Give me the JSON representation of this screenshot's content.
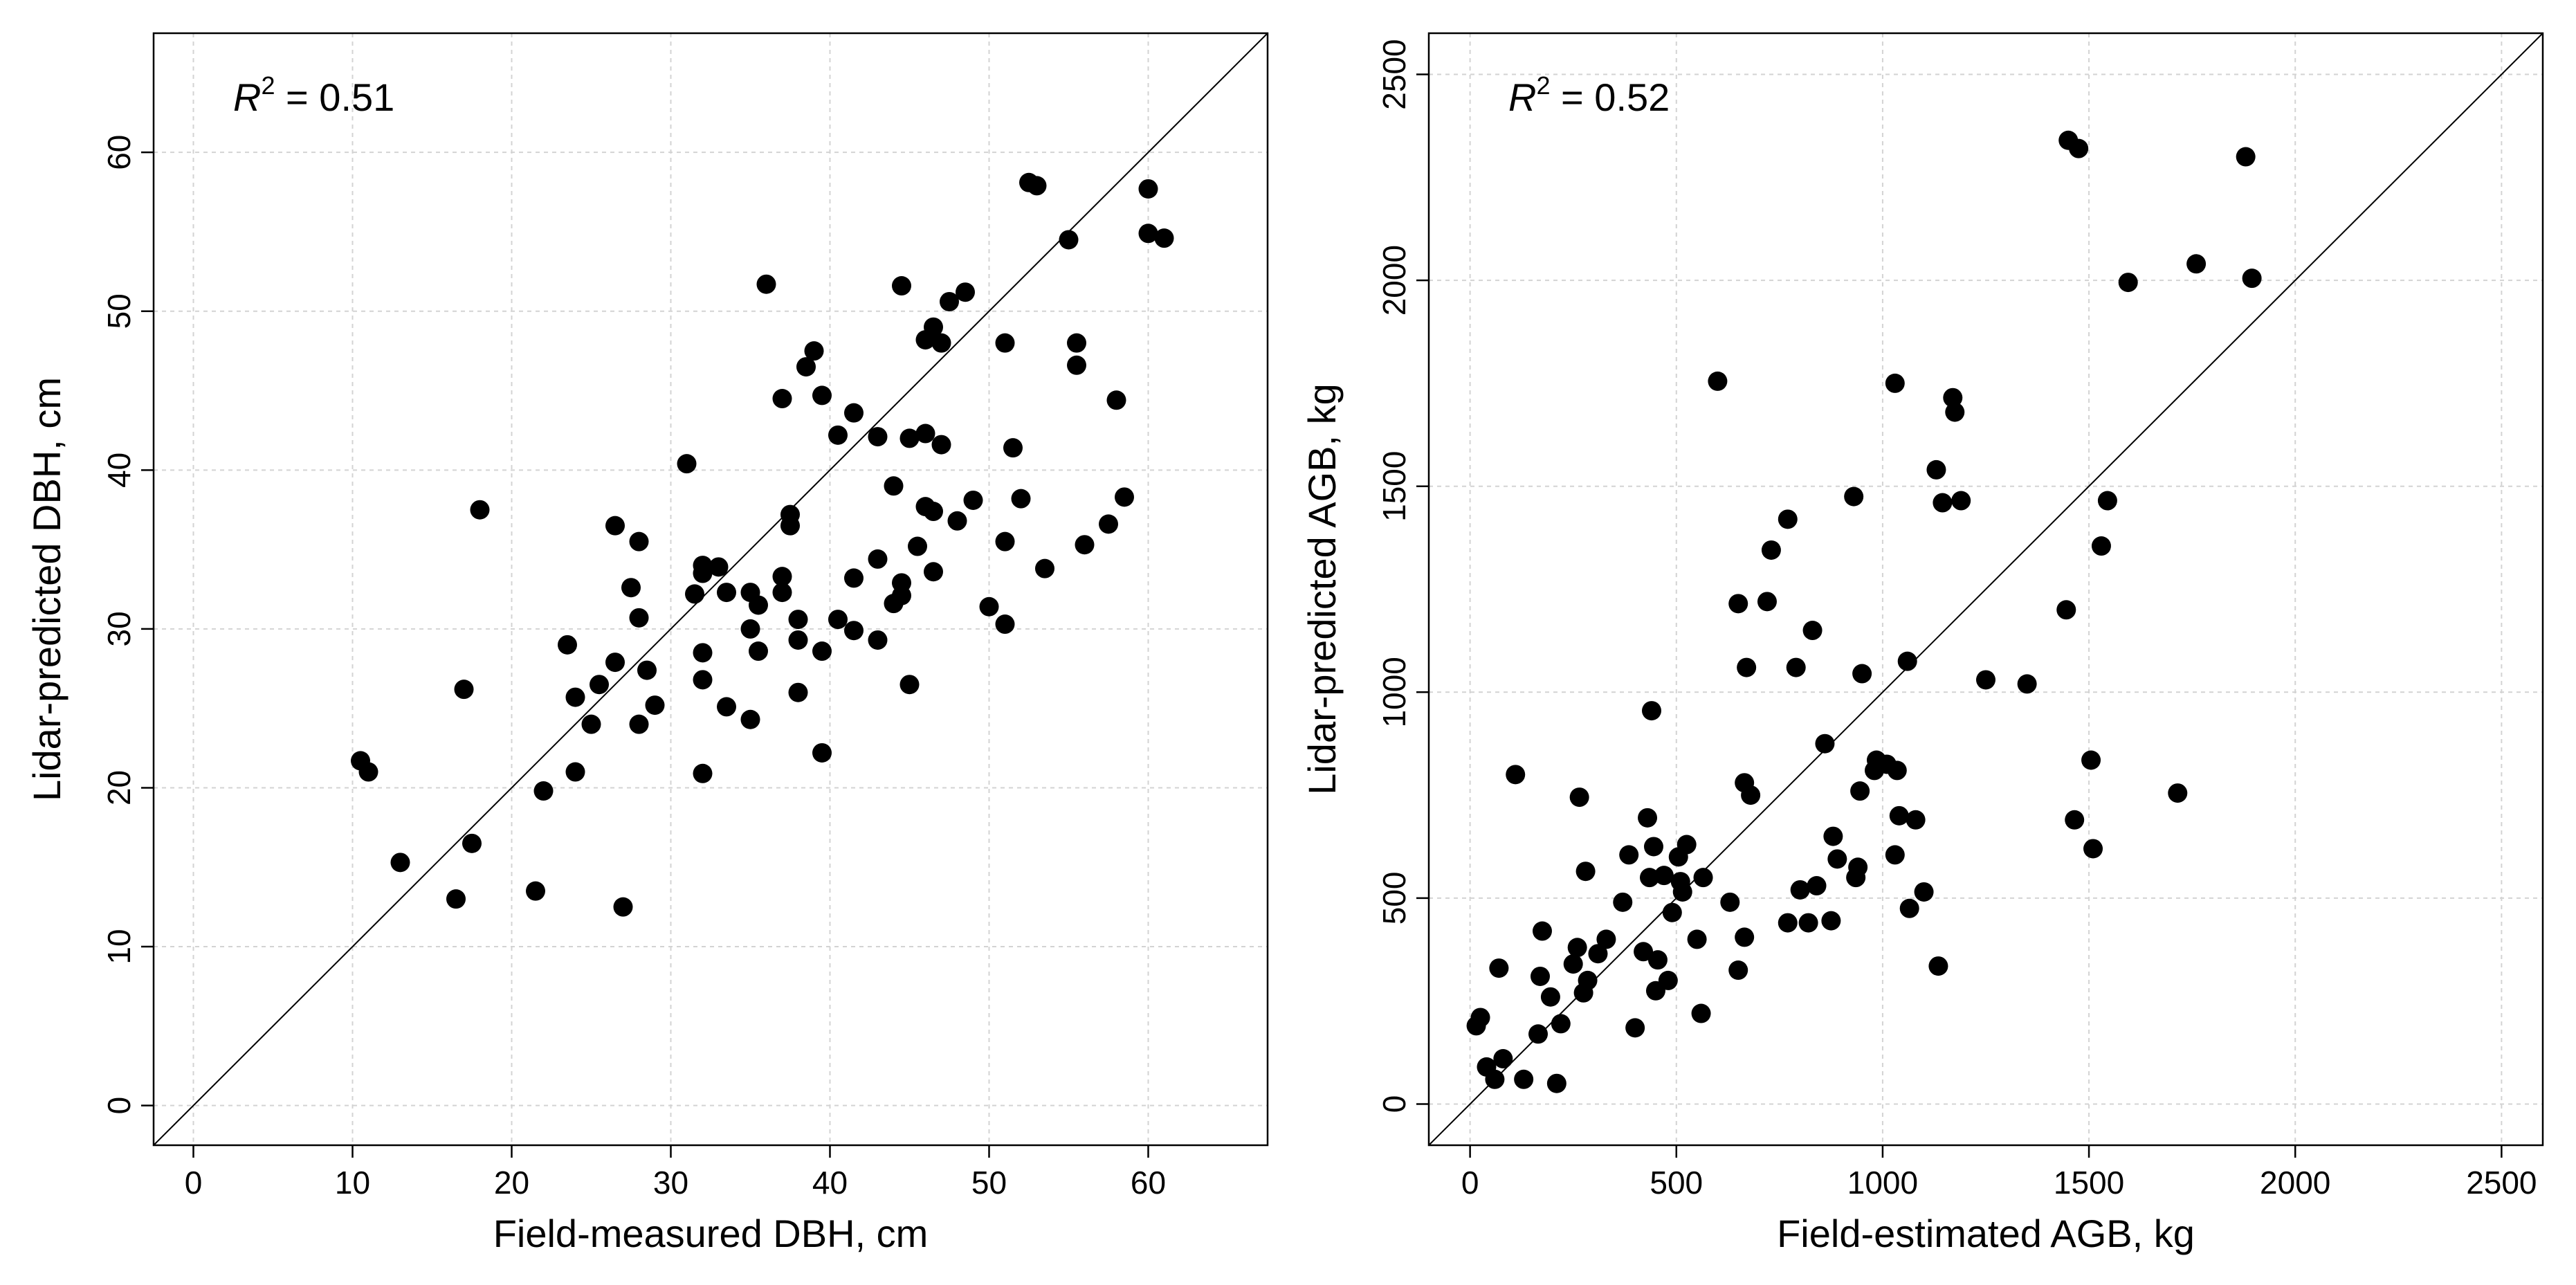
{
  "chart_data": [
    {
      "type": "scatter",
      "xlabel": "Field-measured DBH, cm",
      "ylabel": "Lidar-predicted DBH, cm",
      "annotation": {
        "symbol": "R",
        "exponent": "2",
        "text": " = 0.51"
      },
      "xlim": [
        -2.5,
        67.5
      ],
      "ylim": [
        -2.5,
        67.5
      ],
      "xticks": [
        0,
        10,
        20,
        30,
        40,
        50,
        60
      ],
      "yticks": [
        0,
        10,
        20,
        30,
        40,
        50,
        60
      ],
      "grid": true,
      "reference_line": "1:1",
      "points": [
        [
          10.5,
          21.7
        ],
        [
          11,
          21
        ],
        [
          13,
          15.3
        ],
        [
          16.5,
          13
        ],
        [
          17,
          26.2
        ],
        [
          17.5,
          16.5
        ],
        [
          18,
          37.5
        ],
        [
          21.5,
          13.5
        ],
        [
          22,
          19.8
        ],
        [
          23.5,
          29
        ],
        [
          24,
          21
        ],
        [
          24,
          25.7
        ],
        [
          25,
          24
        ],
        [
          25.5,
          26.5
        ],
        [
          26.5,
          36.5
        ],
        [
          26.5,
          27.9
        ],
        [
          27,
          12.5
        ],
        [
          27.5,
          32.6
        ],
        [
          28,
          35.5
        ],
        [
          28,
          30.7
        ],
        [
          28,
          24
        ],
        [
          28.5,
          27.4
        ],
        [
          29,
          25.2
        ],
        [
          31,
          40.4
        ],
        [
          31.5,
          32.2
        ],
        [
          32,
          34
        ],
        [
          32,
          33.5
        ],
        [
          32,
          28.5
        ],
        [
          32,
          26.8
        ],
        [
          32,
          20.9
        ],
        [
          33,
          33.9
        ],
        [
          33.5,
          32.3
        ],
        [
          33.5,
          25.1
        ],
        [
          35,
          32.3
        ],
        [
          35,
          30
        ],
        [
          35,
          24.3
        ],
        [
          35.5,
          31.5
        ],
        [
          35.5,
          28.6
        ],
        [
          36,
          51.7
        ],
        [
          37,
          44.5
        ],
        [
          37,
          33.3
        ],
        [
          37,
          32.3
        ],
        [
          37.5,
          37.2
        ],
        [
          37.5,
          36.5
        ],
        [
          38,
          30.6
        ],
        [
          38,
          29.3
        ],
        [
          38,
          26
        ],
        [
          38.5,
          46.5
        ],
        [
          39,
          47.5
        ],
        [
          39.5,
          44.7
        ],
        [
          39.5,
          28.6
        ],
        [
          39.5,
          22.2
        ],
        [
          40.5,
          42.2
        ],
        [
          40.5,
          30.6
        ],
        [
          41.5,
          43.6
        ],
        [
          41.5,
          33.2
        ],
        [
          41.5,
          29.9
        ],
        [
          43,
          42.1
        ],
        [
          43,
          34.4
        ],
        [
          43,
          29.3
        ],
        [
          44,
          39
        ],
        [
          44,
          31.6
        ],
        [
          44.5,
          51.6
        ],
        [
          44.5,
          32.9
        ],
        [
          44.5,
          32.1
        ],
        [
          45,
          42
        ],
        [
          45,
          26.5
        ],
        [
          45.5,
          35.2
        ],
        [
          46,
          48.2
        ],
        [
          46,
          42.3
        ],
        [
          46,
          37.7
        ],
        [
          46.5,
          49
        ],
        [
          46.5,
          37.4
        ],
        [
          46.5,
          33.6
        ],
        [
          47,
          48
        ],
        [
          47,
          41.6
        ],
        [
          47.5,
          50.6
        ],
        [
          48,
          36.8
        ],
        [
          48.5,
          51.2
        ],
        [
          49,
          38.1
        ],
        [
          50,
          31.4
        ],
        [
          51,
          48
        ],
        [
          51,
          35.5
        ],
        [
          51,
          30.3
        ],
        [
          51.5,
          41.4
        ],
        [
          52,
          38.2
        ],
        [
          52.5,
          58.1
        ],
        [
          53,
          57.9
        ],
        [
          53.5,
          33.8
        ],
        [
          55,
          54.5
        ],
        [
          55.5,
          48
        ],
        [
          55.5,
          46.6
        ],
        [
          56,
          35.3
        ],
        [
          57.5,
          36.6
        ],
        [
          58,
          44.4
        ],
        [
          58.5,
          38.3
        ],
        [
          60,
          57.7
        ],
        [
          60,
          54.9
        ],
        [
          61,
          54.6
        ]
      ]
    },
    {
      "type": "scatter",
      "xlabel": "Field-estimated AGB, kg",
      "ylabel": "Lidar-predicted AGB, kg",
      "annotation": {
        "symbol": "R",
        "exponent": "2",
        "text": " = 0.52"
      },
      "xlim": [
        -100,
        2600
      ],
      "ylim": [
        -100,
        2600
      ],
      "xticks": [
        0,
        500,
        1000,
        1500,
        2000,
        2500
      ],
      "yticks": [
        0,
        500,
        1000,
        1500,
        2000,
        2500
      ],
      "grid": true,
      "reference_line": "1:1",
      "points": [
        [
          15,
          190
        ],
        [
          25,
          210
        ],
        [
          40,
          90
        ],
        [
          60,
          60
        ],
        [
          70,
          330
        ],
        [
          80,
          110
        ],
        [
          110,
          800
        ],
        [
          130,
          60
        ],
        [
          165,
          170
        ],
        [
          170,
          310
        ],
        [
          175,
          420
        ],
        [
          195,
          260
        ],
        [
          210,
          50
        ],
        [
          220,
          195
        ],
        [
          250,
          340
        ],
        [
          260,
          380
        ],
        [
          265,
          745
        ],
        [
          275,
          270
        ],
        [
          280,
          565
        ],
        [
          285,
          300
        ],
        [
          310,
          365
        ],
        [
          330,
          400
        ],
        [
          370,
          490
        ],
        [
          385,
          605
        ],
        [
          400,
          185
        ],
        [
          420,
          370
        ],
        [
          430,
          695
        ],
        [
          435,
          550
        ],
        [
          440,
          955
        ],
        [
          445,
          625
        ],
        [
          450,
          275
        ],
        [
          455,
          350
        ],
        [
          470,
          555
        ],
        [
          480,
          300
        ],
        [
          490,
          465
        ],
        [
          505,
          600
        ],
        [
          510,
          540
        ],
        [
          515,
          515
        ],
        [
          525,
          630
        ],
        [
          550,
          400
        ],
        [
          560,
          220
        ],
        [
          565,
          550
        ],
        [
          600,
          1755
        ],
        [
          630,
          490
        ],
        [
          650,
          1215
        ],
        [
          650,
          325
        ],
        [
          665,
          780
        ],
        [
          665,
          405
        ],
        [
          670,
          1060
        ],
        [
          680,
          750
        ],
        [
          720,
          1220
        ],
        [
          730,
          1345
        ],
        [
          770,
          1420
        ],
        [
          770,
          440
        ],
        [
          790,
          1060
        ],
        [
          800,
          520
        ],
        [
          820,
          440
        ],
        [
          830,
          1150
        ],
        [
          840,
          530
        ],
        [
          860,
          875
        ],
        [
          875,
          445
        ],
        [
          880,
          650
        ],
        [
          890,
          595
        ],
        [
          930,
          1475
        ],
        [
          935,
          550
        ],
        [
          940,
          575
        ],
        [
          945,
          760
        ],
        [
          950,
          1045
        ],
        [
          980,
          810
        ],
        [
          985,
          835
        ],
        [
          1010,
          825
        ],
        [
          1030,
          1750
        ],
        [
          1030,
          605
        ],
        [
          1035,
          810
        ],
        [
          1040,
          700
        ],
        [
          1060,
          1075
        ],
        [
          1065,
          475
        ],
        [
          1080,
          690
        ],
        [
          1100,
          515
        ],
        [
          1130,
          1540
        ],
        [
          1135,
          335
        ],
        [
          1145,
          1460
        ],
        [
          1170,
          1715
        ],
        [
          1175,
          1680
        ],
        [
          1190,
          1465
        ],
        [
          1250,
          1030
        ],
        [
          1350,
          1020
        ],
        [
          1445,
          1200
        ],
        [
          1450,
          2340
        ],
        [
          1465,
          690
        ],
        [
          1475,
          2320
        ],
        [
          1505,
          835
        ],
        [
          1510,
          620
        ],
        [
          1530,
          1355
        ],
        [
          1545,
          1465
        ],
        [
          1595,
          1995
        ],
        [
          1715,
          755
        ],
        [
          1760,
          2040
        ],
        [
          1880,
          2300
        ],
        [
          1895,
          2005
        ]
      ]
    }
  ]
}
